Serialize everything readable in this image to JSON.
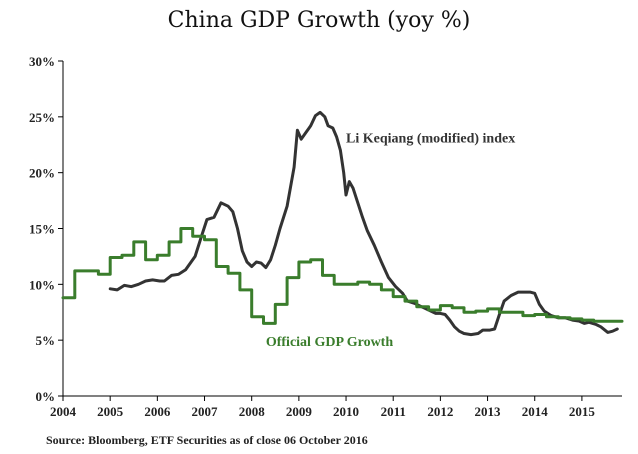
{
  "title": "China GDP Growth (yoy %)",
  "source_note": "Source: Bloomberg, ETF Securities as of close 06 October 2016",
  "colors": {
    "li_keqiang": "#333333",
    "official": "#3a7d2c",
    "axis": "#000000"
  },
  "chart_data": {
    "type": "line",
    "title": "China GDP Growth (yoy %)",
    "xlabel": "",
    "ylabel": "",
    "xlim": [
      2004.0,
      2015.85
    ],
    "ylim": [
      0,
      30
    ],
    "y_ticks": [
      0,
      5,
      10,
      15,
      20,
      25,
      30
    ],
    "y_tick_labels": [
      "0%",
      "5%",
      "10%",
      "15%",
      "20%",
      "25%",
      "30%"
    ],
    "x_ticks": [
      2004,
      2005,
      2006,
      2007,
      2008,
      2009,
      2010,
      2011,
      2012,
      2013,
      2014,
      2015
    ],
    "x_tick_labels": [
      "2004",
      "2005",
      "2006",
      "2007",
      "2008",
      "2009",
      "2010",
      "2011",
      "2012",
      "2013",
      "2014",
      "2015"
    ],
    "grid": false,
    "series": [
      {
        "name": "Li Keqiang  (modified) index",
        "key": "li_keqiang",
        "label_text": "Li Keqiang  (modified) index",
        "label_at": [
          2010.0,
          22.7
        ],
        "step": false,
        "points": [
          [
            2005.0,
            9.6
          ],
          [
            2005.15,
            9.5
          ],
          [
            2005.3,
            9.9
          ],
          [
            2005.45,
            9.8
          ],
          [
            2005.6,
            10.0
          ],
          [
            2005.75,
            10.3
          ],
          [
            2005.9,
            10.4
          ],
          [
            2006.05,
            10.3
          ],
          [
            2006.15,
            10.3
          ],
          [
            2006.3,
            10.8
          ],
          [
            2006.45,
            10.9
          ],
          [
            2006.6,
            11.3
          ],
          [
            2006.8,
            12.5
          ],
          [
            2006.95,
            14.5
          ],
          [
            2007.05,
            15.8
          ],
          [
            2007.2,
            16.0
          ],
          [
            2007.35,
            17.3
          ],
          [
            2007.5,
            17.0
          ],
          [
            2007.6,
            16.5
          ],
          [
            2007.7,
            15.0
          ],
          [
            2007.8,
            13.0
          ],
          [
            2007.9,
            12.0
          ],
          [
            2008.0,
            11.6
          ],
          [
            2008.1,
            12.0
          ],
          [
            2008.2,
            11.9
          ],
          [
            2008.3,
            11.5
          ],
          [
            2008.4,
            12.2
          ],
          [
            2008.5,
            13.5
          ],
          [
            2008.6,
            15.0
          ],
          [
            2008.75,
            17.0
          ],
          [
            2008.9,
            20.5
          ],
          [
            2008.97,
            23.8
          ],
          [
            2009.05,
            23.0
          ],
          [
            2009.15,
            23.6
          ],
          [
            2009.25,
            24.2
          ],
          [
            2009.35,
            25.1
          ],
          [
            2009.45,
            25.4
          ],
          [
            2009.55,
            25.0
          ],
          [
            2009.62,
            24.2
          ],
          [
            2009.72,
            24.0
          ],
          [
            2009.8,
            23.2
          ],
          [
            2009.88,
            22.0
          ],
          [
            2009.95,
            20.0
          ],
          [
            2010.0,
            18.0
          ],
          [
            2010.07,
            19.2
          ],
          [
            2010.15,
            18.6
          ],
          [
            2010.25,
            17.3
          ],
          [
            2010.35,
            16.0
          ],
          [
            2010.45,
            14.8
          ],
          [
            2010.6,
            13.5
          ],
          [
            2010.75,
            12.0
          ],
          [
            2010.9,
            10.6
          ],
          [
            2011.05,
            9.8
          ],
          [
            2011.2,
            9.2
          ],
          [
            2011.3,
            8.5
          ],
          [
            2011.45,
            8.3
          ],
          [
            2011.6,
            8.0
          ],
          [
            2011.75,
            7.7
          ],
          [
            2011.9,
            7.4
          ],
          [
            2012.0,
            7.4
          ],
          [
            2012.1,
            7.3
          ],
          [
            2012.2,
            6.8
          ],
          [
            2012.3,
            6.2
          ],
          [
            2012.4,
            5.8
          ],
          [
            2012.5,
            5.6
          ],
          [
            2012.65,
            5.5
          ],
          [
            2012.8,
            5.6
          ],
          [
            2012.9,
            5.9
          ],
          [
            2013.05,
            5.9
          ],
          [
            2013.15,
            6.0
          ],
          [
            2013.25,
            7.3
          ],
          [
            2013.35,
            8.5
          ],
          [
            2013.5,
            9.0
          ],
          [
            2013.65,
            9.3
          ],
          [
            2013.8,
            9.3
          ],
          [
            2013.9,
            9.3
          ],
          [
            2014.0,
            9.2
          ],
          [
            2014.1,
            8.2
          ],
          [
            2014.2,
            7.6
          ],
          [
            2014.35,
            7.2
          ],
          [
            2014.5,
            7.0
          ],
          [
            2014.65,
            7.0
          ],
          [
            2014.8,
            6.8
          ],
          [
            2014.95,
            6.7
          ],
          [
            2015.05,
            6.5
          ],
          [
            2015.15,
            6.6
          ],
          [
            2015.3,
            6.4
          ],
          [
            2015.4,
            6.2
          ],
          [
            2015.55,
            5.7
          ],
          [
            2015.65,
            5.8
          ],
          [
            2015.75,
            6.0
          ]
        ]
      },
      {
        "name": "Official GDP Growth",
        "key": "official",
        "label_text": "Official GDP Growth",
        "label_at": [
          2008.3,
          4.5
        ],
        "step": true,
        "points": [
          [
            2004.0,
            8.8
          ],
          [
            2004.25,
            11.2
          ],
          [
            2004.75,
            10.9
          ],
          [
            2005.0,
            12.4
          ],
          [
            2005.25,
            12.6
          ],
          [
            2005.5,
            13.8
          ],
          [
            2005.75,
            12.2
          ],
          [
            2006.0,
            12.6
          ],
          [
            2006.25,
            13.8
          ],
          [
            2006.5,
            15.0
          ],
          [
            2006.75,
            14.3
          ],
          [
            2007.0,
            14.0
          ],
          [
            2007.25,
            11.6
          ],
          [
            2007.5,
            11.0
          ],
          [
            2007.75,
            9.5
          ],
          [
            2008.0,
            7.1
          ],
          [
            2008.25,
            6.5
          ],
          [
            2008.5,
            8.2
          ],
          [
            2008.75,
            10.6
          ],
          [
            2009.0,
            12.0
          ],
          [
            2009.25,
            12.2
          ],
          [
            2009.5,
            10.8
          ],
          [
            2009.75,
            10.0
          ],
          [
            2010.25,
            10.2
          ],
          [
            2010.5,
            10.0
          ],
          [
            2010.75,
            9.5
          ],
          [
            2011.0,
            8.9
          ],
          [
            2011.25,
            8.5
          ],
          [
            2011.5,
            8.0
          ],
          [
            2011.75,
            7.7
          ],
          [
            2012.0,
            8.1
          ],
          [
            2012.25,
            7.9
          ],
          [
            2012.5,
            7.5
          ],
          [
            2012.75,
            7.6
          ],
          [
            2013.0,
            7.8
          ],
          [
            2013.25,
            7.5
          ],
          [
            2013.5,
            7.5
          ],
          [
            2013.75,
            7.2
          ],
          [
            2014.0,
            7.3
          ],
          [
            2014.25,
            7.1
          ],
          [
            2014.5,
            7.0
          ],
          [
            2014.75,
            6.9
          ],
          [
            2015.0,
            6.8
          ],
          [
            2015.25,
            6.7
          ],
          [
            2015.5,
            6.7
          ],
          [
            2015.75,
            6.7
          ]
        ]
      }
    ]
  }
}
